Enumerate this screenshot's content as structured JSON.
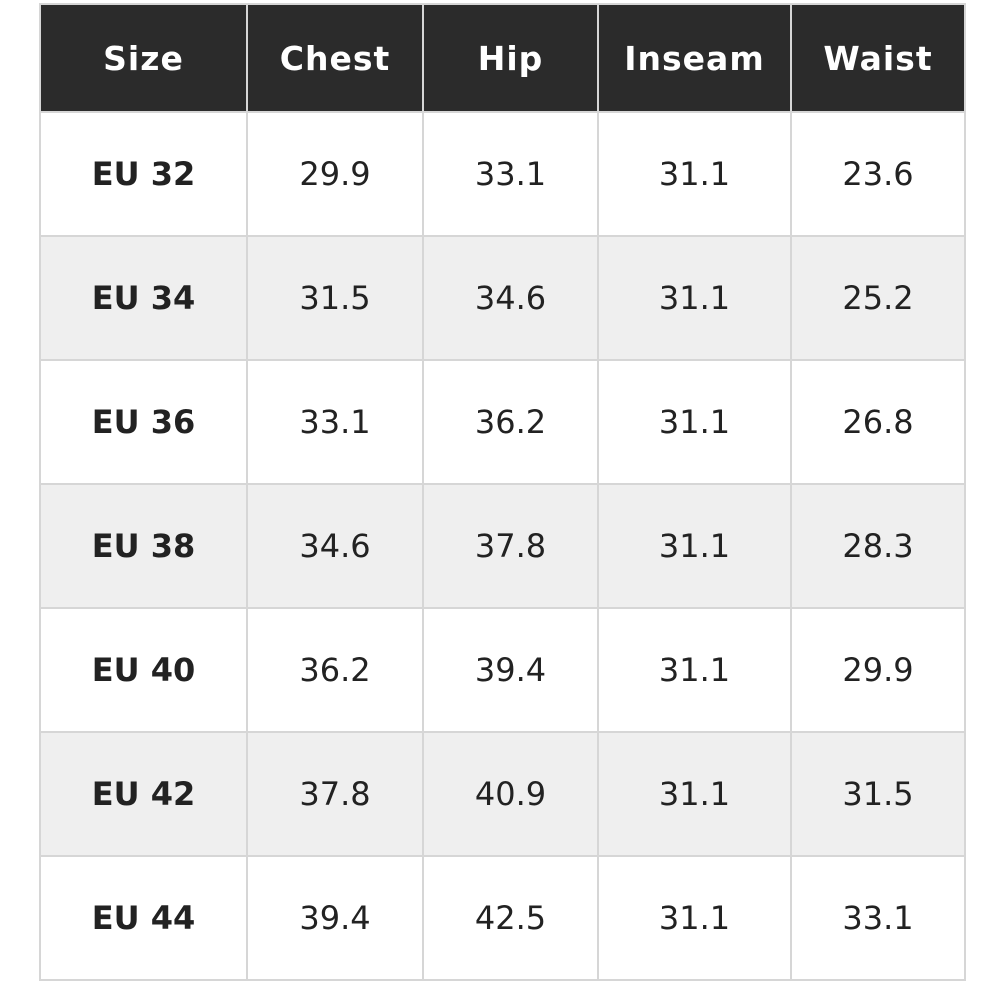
{
  "table": {
    "header": [
      "Size",
      "Chest",
      "Hip",
      "Inseam",
      "Waist"
    ],
    "rows": [
      [
        "EU 32",
        "29.9",
        "33.1",
        "31.1",
        "23.6"
      ],
      [
        "EU 34",
        "31.5",
        "34.6",
        "31.1",
        "25.2"
      ],
      [
        "EU 36",
        "33.1",
        "36.2",
        "31.1",
        "26.8"
      ],
      [
        "EU 38",
        "34.6",
        "37.8",
        "31.1",
        "28.3"
      ],
      [
        "EU 40",
        "36.2",
        "39.4",
        "31.1",
        "29.9"
      ],
      [
        "EU 42",
        "37.8",
        "40.9",
        "31.1",
        "31.5"
      ],
      [
        "EU 44",
        "39.4",
        "42.5",
        "31.1",
        "33.1"
      ]
    ]
  }
}
